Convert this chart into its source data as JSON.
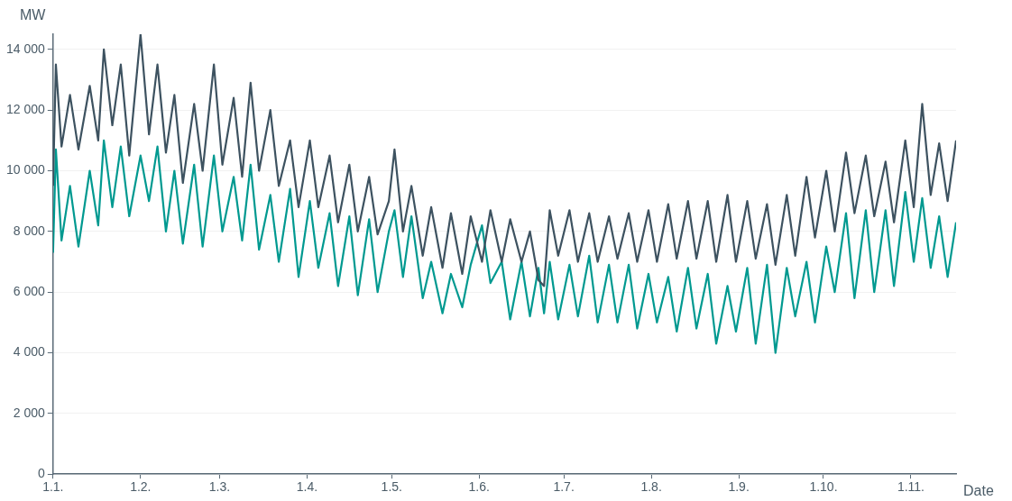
{
  "chart_data": {
    "type": "line",
    "xlabel": "Date",
    "ylabel": "MW",
    "x": [
      "--01-01",
      "--01-02",
      "--01-04",
      "--01-07",
      "--01-10",
      "--01-14",
      "--01-17",
      "--01-19",
      "--01-22",
      "--01-25",
      "--01-28",
      "--02-01",
      "--02-04",
      "--02-07",
      "--02-10",
      "--02-13",
      "--02-16",
      "--02-20",
      "--02-23",
      "--02-27",
      "--03-02",
      "--03-06",
      "--03-09",
      "--03-12",
      "--03-15",
      "--03-19",
      "--03-22",
      "--03-26",
      "--03-29",
      "--04-02",
      "--04-05",
      "--04-09",
      "--04-12",
      "--04-16",
      "--04-19",
      "--04-23",
      "--04-26",
      "--04-30",
      "--05-02",
      "--05-05",
      "--05-08",
      "--05-12",
      "--05-15",
      "--05-19",
      "--05-22",
      "--05-26",
      "--05-29",
      "--06-02",
      "--06-05",
      "--06-09",
      "--06-12",
      "--06-16",
      "--06-19",
      "--06-22",
      "--06-24",
      "--06-26",
      "--06-29",
      "--07-03",
      "--07-06",
      "--07-10",
      "--07-13",
      "--07-17",
      "--07-20",
      "--07-24",
      "--07-27",
      "--07-31",
      "--08-03",
      "--08-07",
      "--08-10",
      "--08-14",
      "--08-17",
      "--08-21",
      "--08-24",
      "--08-28",
      "--08-31",
      "--09-04",
      "--09-07",
      "--09-11",
      "--09-14",
      "--09-18",
      "--09-21",
      "--09-25",
      "--09-28",
      "--10-02",
      "--10-05",
      "--10-09",
      "--10-12",
      "--10-16",
      "--10-19",
      "--10-23",
      "--10-26",
      "--10-30",
      "--11-02",
      "--11-05",
      "--11-08",
      "--11-11",
      "--11-14",
      "--11-17"
    ],
    "series": [
      {
        "color": "#3d5260",
        "values": [
          9500,
          13500,
          10800,
          12500,
          10700,
          12800,
          11000,
          14000,
          11500,
          13500,
          10500,
          14500,
          11200,
          13500,
          10600,
          12500,
          9600,
          12200,
          10000,
          13500,
          10200,
          12400,
          9800,
          12900,
          10000,
          12000,
          9500,
          11000,
          8800,
          11000,
          8800,
          10500,
          8300,
          10200,
          8000,
          9800,
          7900,
          9000,
          10700,
          8000,
          9500,
          7200,
          8800,
          6800,
          8600,
          6600,
          8500,
          7000,
          8700,
          7000,
          8400,
          7000,
          8000,
          6400,
          6200,
          8700,
          7200,
          8700,
          7000,
          8600,
          7000,
          8500,
          7100,
          8600,
          7000,
          8700,
          7000,
          8900,
          7100,
          9000,
          7100,
          9000,
          7000,
          9200,
          7000,
          9000,
          7100,
          8900,
          6900,
          9200,
          7200,
          9800,
          7800,
          10000,
          8000,
          10600,
          8600,
          10500,
          8500,
          10300,
          8300,
          11000,
          8800,
          12200,
          9200,
          10900,
          9000,
          11000
        ]
      },
      {
        "color": "#009990",
        "values": [
          7300,
          10700,
          7700,
          9500,
          7500,
          10000,
          8200,
          11000,
          8800,
          10800,
          8500,
          10500,
          9000,
          10800,
          8000,
          10000,
          7600,
          10200,
          7500,
          10500,
          8000,
          9800,
          7700,
          10200,
          7400,
          9200,
          7000,
          9400,
          6500,
          9000,
          6800,
          8600,
          6200,
          8500,
          5900,
          8400,
          6000,
          8000,
          8700,
          6500,
          8500,
          5800,
          7000,
          5300,
          6600,
          5500,
          6900,
          8200,
          6300,
          7000,
          5100,
          7000,
          5200,
          6800,
          5300,
          7000,
          5100,
          6900,
          5200,
          7200,
          5000,
          6900,
          5000,
          6900,
          4800,
          6600,
          5000,
          6500,
          4700,
          6800,
          4800,
          6600,
          4300,
          6200,
          4700,
          6800,
          4300,
          6900,
          4000,
          6800,
          5200,
          7000,
          5000,
          7500,
          6000,
          8600,
          5800,
          8700,
          6000,
          8700,
          6200,
          9300,
          7000,
          9100,
          6800,
          8500,
          6500,
          8300
        ]
      }
    ],
    "xlim": [
      "--01-01",
      "--11-17"
    ],
    "xticks": [
      {
        "value": "--01-01",
        "label": "1.1."
      },
      {
        "value": "--02-01",
        "label": "1.2."
      },
      {
        "value": "--03-01",
        "label": "1.3."
      },
      {
        "value": "--04-01",
        "label": "1.4."
      },
      {
        "value": "--05-01",
        "label": "1.5."
      },
      {
        "value": "--06-01",
        "label": "1.6."
      },
      {
        "value": "--07-01",
        "label": "1.7."
      },
      {
        "value": "--08-01",
        "label": "1.8."
      },
      {
        "value": "--09-01",
        "label": "1.9."
      },
      {
        "value": "--10-01",
        "label": "1.10."
      },
      {
        "value": "--11-01",
        "label": "1.11."
      }
    ],
    "ylim": [
      0,
      14500
    ],
    "yticks": [
      {
        "value": 0,
        "label": "0"
      },
      {
        "value": 2000,
        "label": "2 000"
      },
      {
        "value": 4000,
        "label": "4 000"
      },
      {
        "value": 6000,
        "label": "6 000"
      },
      {
        "value": 8000,
        "label": "8 000"
      },
      {
        "value": 10000,
        "label": "10 000"
      },
      {
        "value": 12000,
        "label": "12 000"
      },
      {
        "value": 14000,
        "label": "14 000"
      }
    ],
    "grid": "y",
    "legend": false,
    "marker": "none",
    "line_style": "solid"
  }
}
